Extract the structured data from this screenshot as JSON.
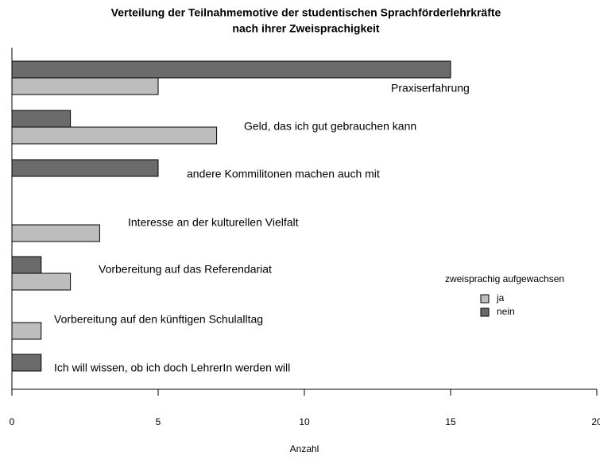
{
  "chart_data": {
    "type": "bar",
    "orientation": "horizontal",
    "title": [
      "Verteilung der Teilnahmemotive der studentischen Sprachförderlehrkräfte",
      "nach ihrer Zweisprachigkeit"
    ],
    "categories": [
      "Praxiserfahrung",
      "Geld, das ich gut gebrauchen kann",
      "andere Kommilitonen machen auch mit",
      "Interesse an der kulturellen Vielfalt",
      "Vorbereitung auf das Referendariat",
      "Vorbereitung auf den künftigen Schulalltag",
      "Ich will wissen, ob ich doch LehrerIn werden will"
    ],
    "series": [
      {
        "name": "ja",
        "color": "#bdbdbd",
        "values": [
          5,
          7,
          0,
          3,
          2,
          1,
          0
        ]
      },
      {
        "name": "nein",
        "color": "#6b6b6b",
        "values": [
          15,
          2,
          5,
          0,
          1,
          0,
          1
        ]
      }
    ],
    "legend_title": "zweisprachig aufgewachsen",
    "x_label": "Anzahl",
    "xlim": [
      0,
      20
    ],
    "xticks": [
      0,
      5,
      10,
      15,
      20
    ]
  }
}
